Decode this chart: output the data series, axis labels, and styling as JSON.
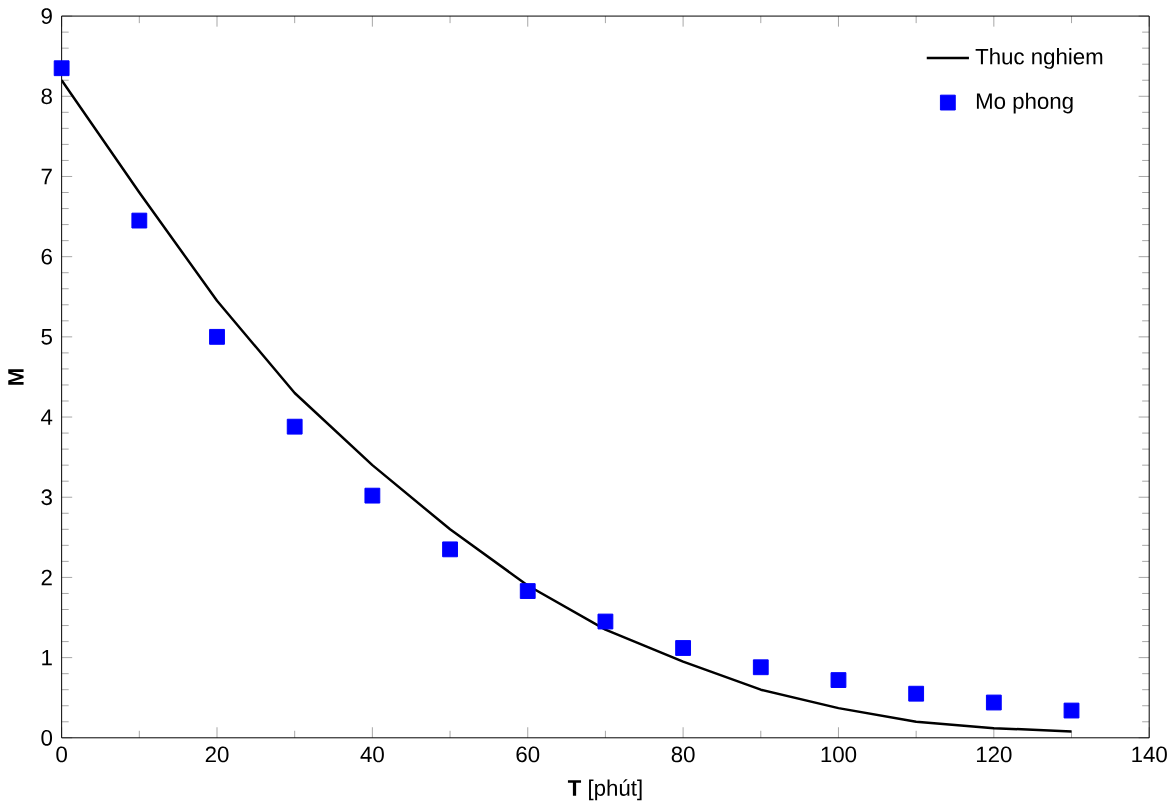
{
  "chart_data": {
    "type": "line",
    "xlabel": "**T**   [phút]",
    "ylabel": "**M**",
    "xlim": [
      0,
      140
    ],
    "ylim": [
      0,
      9
    ],
    "xticks": [
      0,
      20,
      40,
      60,
      80,
      100,
      120,
      140
    ],
    "yticks": [
      0,
      1,
      2,
      3,
      4,
      5,
      6,
      7,
      8,
      9
    ],
    "legend": "top right",
    "grid": false,
    "series": [
      {
        "name": "Thuc nghiem",
        "color": "#000000",
        "marker": "none",
        "line_style": "solid",
        "x": [
          0,
          10,
          20,
          30,
          40,
          50,
          60,
          70,
          80,
          90,
          100,
          110,
          120,
          130
        ],
        "values": [
          8.2,
          6.8,
          5.45,
          4.3,
          3.4,
          2.6,
          1.9,
          1.35,
          0.95,
          0.6,
          0.37,
          0.2,
          0.12,
          0.08
        ]
      },
      {
        "name": "Mo phong",
        "type": "scatter",
        "color": "#0000ff",
        "marker": "square",
        "x": [
          0,
          10,
          20,
          30,
          40,
          50,
          60,
          70,
          80,
          90,
          100,
          110,
          120,
          130
        ],
        "values": [
          8.35,
          6.45,
          5.0,
          3.88,
          3.02,
          2.35,
          1.83,
          1.45,
          1.12,
          0.88,
          0.72,
          0.55,
          0.44,
          0.34
        ]
      }
    ]
  }
}
